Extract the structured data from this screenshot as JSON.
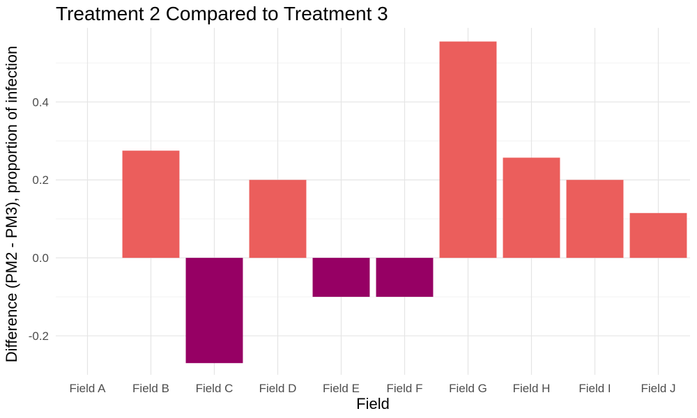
{
  "chart_data": {
    "type": "bar",
    "title": "Treatment 2 Compared to Treatment 3",
    "xlabel": "Field",
    "ylabel": "Difference (PM2 - PM3), proportion of infection",
    "categories": [
      "Field A",
      "Field B",
      "Field C",
      "Field D",
      "Field E",
      "Field F",
      "Field G",
      "Field H",
      "Field I",
      "Field J"
    ],
    "values": [
      0.0,
      0.275,
      -0.27,
      0.2,
      -0.1,
      -0.1,
      0.555,
      0.257,
      0.2,
      0.115
    ],
    "ylim": [
      -0.3,
      0.59
    ],
    "yticks": [
      -0.2,
      0.0,
      0.2,
      0.4
    ],
    "ytick_labels": [
      "-0.2",
      "0.0",
      "0.2",
      "0.4"
    ],
    "grid": true,
    "legend": "none",
    "colors": {
      "positive": "#eb5e5c",
      "negative": "#960064"
    }
  }
}
